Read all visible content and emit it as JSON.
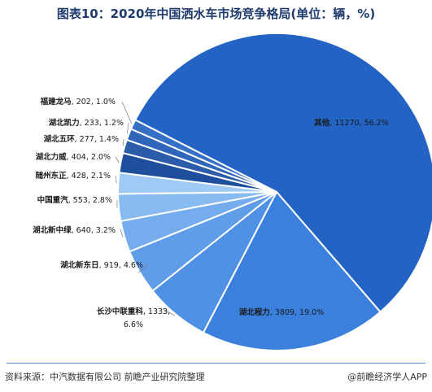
{
  "chart_data": {
    "type": "pie",
    "title": "图表10：2020年中国洒水车市场竞争格局(单位：辆，%)",
    "unit": "辆",
    "slices": [
      {
        "name": "其他",
        "value": 11270,
        "label_value": "11270",
        "pct": "56.2%",
        "color": "#2363c4"
      },
      {
        "name": "湖北程力",
        "value": 3809,
        "label_value": "3809",
        "pct": "19.0%",
        "color": "#3a80dc"
      },
      {
        "name": "长沙中联重科",
        "value": 1333,
        "label_value": "1333,",
        "pct": "6.6%",
        "color": "#4e91e5"
      },
      {
        "name": "湖北新东日",
        "value": 919,
        "label_value": "919",
        "pct": "4.6%",
        "color": "#5f9de9"
      },
      {
        "name": "湖北新中绿",
        "value": 640,
        "label_value": "640",
        "pct": "3.2%",
        "color": "#74acee"
      },
      {
        "name": "中国重汽",
        "value": 553,
        "label_value": "553",
        "pct": "2.8%",
        "color": "#88bbf2"
      },
      {
        "name": "随州东正",
        "value": 428,
        "label_value": "428",
        "pct": "2.1%",
        "color": "#9fcaf5"
      },
      {
        "name": "湖北力威",
        "value": 404,
        "label_value": "404",
        "pct": "2.0%",
        "color": "#1e4f9c"
      },
      {
        "name": "湖北五环",
        "value": 277,
        "label_value": "277",
        "pct": "1.4%",
        "color": "#2a5caa"
      },
      {
        "name": "湖北凯力",
        "value": 233,
        "label_value": "233",
        "pct": "1.2%",
        "color": "#2f66bb"
      },
      {
        "name": "福建龙马",
        "value": 202,
        "label_value": "202",
        "pct": "1.0%",
        "color": "#3670c6"
      }
    ]
  },
  "footer": {
    "source": "资料来源：中汽数据有限公司 前瞻产业研究院整理",
    "brand": "@前瞻经济学人APP"
  }
}
